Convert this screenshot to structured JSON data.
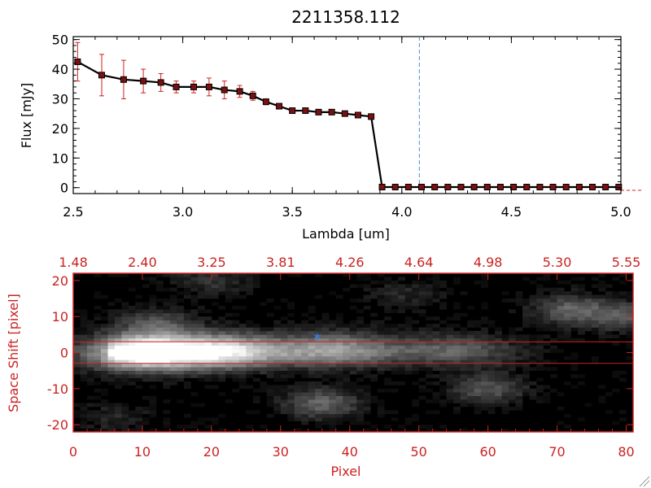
{
  "figure_title": "2211358.112",
  "colors": {
    "black": "#000000",
    "red": "#cc2222",
    "marker_fill": "#7a1010",
    "dashed_line": "#4a90d0",
    "star": "#3a78c8"
  },
  "chart_data": [
    {
      "type": "line",
      "title": "2211358.112",
      "xlabel": "Lambda [um]",
      "ylabel": "Flux [mJy]",
      "xlim": [
        2.5,
        5.0
      ],
      "ylim": [
        -2,
        51
      ],
      "xticks": [
        "2.5",
        "3.0",
        "3.5",
        "4.0",
        "4.5",
        "5.0"
      ],
      "yticks": [
        "0",
        "10",
        "20",
        "30",
        "40",
        "50"
      ],
      "vline_x": 4.08,
      "grid": false,
      "series": [
        {
          "x": [
            2.52,
            2.63,
            2.73,
            2.82,
            2.9,
            2.97,
            3.05,
            3.12,
            3.19,
            3.26,
            3.32,
            3.38,
            3.44,
            3.5,
            3.56,
            3.62,
            3.68,
            3.74,
            3.8,
            3.86,
            3.91,
            3.97,
            4.03,
            4.09,
            4.15,
            4.21,
            4.27,
            4.33,
            4.39,
            4.45,
            4.51,
            4.57,
            4.63,
            4.69,
            4.75,
            4.81,
            4.87,
            4.93,
            4.99
          ],
          "y": [
            42.5,
            38.0,
            36.5,
            36.0,
            35.5,
            34.0,
            34.0,
            34.0,
            33.0,
            32.5,
            31.0,
            29.0,
            27.5,
            26.0,
            26.0,
            25.5,
            25.5,
            25.0,
            24.5,
            24.0,
            0.2,
            0.2,
            0.2,
            0.2,
            0.2,
            0.2,
            0.2,
            0.2,
            0.2,
            0.2,
            0.2,
            0.2,
            0.2,
            0.2,
            0.2,
            0.2,
            0.2,
            0.2,
            0.2
          ],
          "yerr": [
            6.5,
            7.0,
            6.5,
            4.0,
            3.0,
            2.0,
            2.0,
            3.0,
            3.0,
            2.0,
            1.5,
            1.0,
            0.5,
            0.5,
            0.5,
            0.5,
            0.5,
            0.5,
            0.5,
            0.5,
            0.0,
            0.0,
            0.0,
            0.0,
            0.0,
            0.0,
            0.0,
            0.0,
            0.0,
            0.0,
            0.0,
            0.0,
            0.0,
            0.0,
            0.0,
            0.0,
            0.0,
            0.0,
            0.0
          ]
        }
      ]
    },
    {
      "type": "heatmap",
      "xlabel": "Pixel",
      "ylabel": "Space Shift [pixel]",
      "xlim": [
        0,
        81
      ],
      "ylim": [
        -22,
        22
      ],
      "xticks": [
        "0",
        "10",
        "20",
        "30",
        "40",
        "50",
        "60",
        "70",
        "80"
      ],
      "yticks": [
        "-20",
        "-10",
        "0",
        "10",
        "20"
      ],
      "top_axis_ticks": [
        "1.48",
        "2.40",
        "3.25",
        "3.81",
        "4.26",
        "4.64",
        "4.98",
        "5.30",
        "5.55"
      ],
      "extraction_aperture": [
        -3,
        3
      ],
      "star_marker": [
        35.3,
        4.5
      ],
      "colormap": "grayscale",
      "sources": [
        {
          "x": 10,
          "y": 0,
          "peak": 1.0
        },
        {
          "x": 22,
          "y": 0.5,
          "peak": 0.72
        },
        {
          "x": 38,
          "y": 1,
          "peak": 0.5
        },
        {
          "x": 55,
          "y": 1,
          "peak": 0.3
        },
        {
          "x": 12,
          "y": 8,
          "peak": 0.32
        },
        {
          "x": 36,
          "y": -14,
          "peak": 0.4
        },
        {
          "x": 60,
          "y": -10,
          "peak": 0.33
        },
        {
          "x": 72,
          "y": 12,
          "peak": 0.38
        },
        {
          "x": 80,
          "y": 10,
          "peak": 0.3
        },
        {
          "x": 20,
          "y": 20,
          "peak": 0.2
        },
        {
          "x": 48,
          "y": 16,
          "peak": 0.15
        },
        {
          "x": 6,
          "y": -18,
          "peak": 0.15
        }
      ]
    }
  ]
}
